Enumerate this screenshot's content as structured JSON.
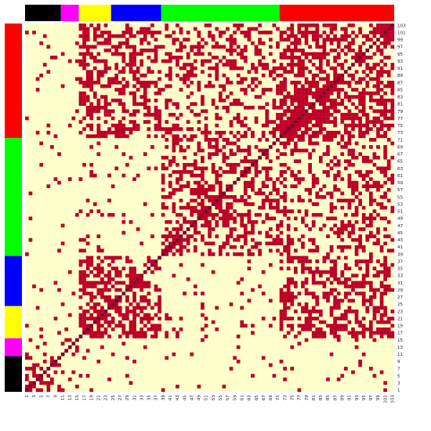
{
  "chart_data": {
    "type": "heatmap",
    "title": "",
    "xlabel": "",
    "ylabel": "",
    "n": 103,
    "colors": {
      "background": "#FFFFCC",
      "cell": "#BD0026",
      "diagonal": "#800026",
      "dense": "#9E0026"
    },
    "groups": [
      {
        "color": "#000000",
        "start": 1,
        "end": 10
      },
      {
        "color": "#FF00FF",
        "start": 11,
        "end": 15
      },
      {
        "color": "#FFFF00",
        "start": 16,
        "end": 24
      },
      {
        "color": "#0000FF",
        "start": 25,
        "end": 38
      },
      {
        "color": "#00FF00",
        "start": 39,
        "end": 71
      },
      {
        "color": "#FF0000",
        "start": 72,
        "end": 103
      }
    ],
    "x_tick_labels": [
      "1",
      "3",
      "5",
      "7",
      "9",
      "11",
      "13",
      "15",
      "17",
      "19",
      "21",
      "23",
      "25",
      "27",
      "29",
      "31",
      "33",
      "35",
      "37",
      "39",
      "41",
      "43",
      "45",
      "47",
      "49",
      "51",
      "53",
      "55",
      "57",
      "59",
      "61",
      "63",
      "65",
      "67",
      "69",
      "71",
      "73",
      "75",
      "77",
      "79",
      "81",
      "83",
      "85",
      "87",
      "89",
      "91",
      "93",
      "95",
      "97",
      "99",
      "101",
      "103"
    ],
    "y_tick_labels": [
      "1",
      "3",
      "5",
      "7",
      "9",
      "11",
      "13",
      "15",
      "17",
      "19",
      "21",
      "23",
      "25",
      "27",
      "29",
      "31",
      "33",
      "35",
      "37",
      "39",
      "41",
      "43",
      "45",
      "47",
      "49",
      "51",
      "53",
      "55",
      "57",
      "59",
      "61",
      "63",
      "65",
      "67",
      "69",
      "71",
      "73",
      "75",
      "77",
      "79",
      "81",
      "83",
      "85",
      "87",
      "89",
      "91",
      "93",
      "95",
      "97",
      "99",
      "101",
      "103"
    ]
  }
}
